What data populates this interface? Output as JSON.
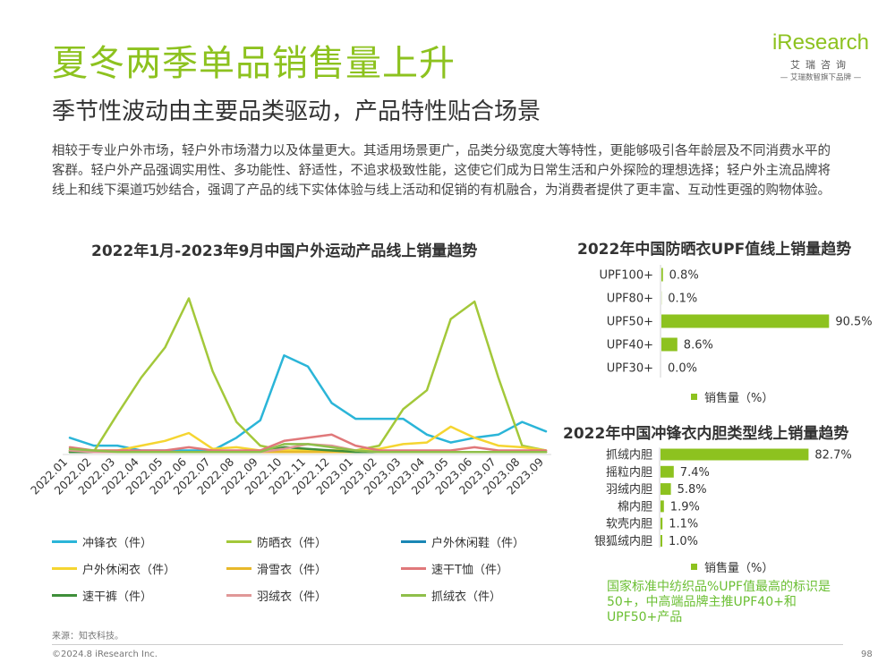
{
  "header": {
    "title": "夏冬两季单品销售量上升",
    "subtitle": "季节性波动由主要品类驱动，产品特性贴合场景",
    "intro": "相较于专业户外市场，轻户外市场潜力以及体量更大。其适用场景更广，品类分级宽度大等特性，更能够吸引各年龄层及不同消费水平的客群。轻户外产品强调实用性、多功能性、舒适性，不追求极致性能，这使它们成为日常生活和户外探险的理想选择；轻户外主流品牌将线上和线下渠道巧妙结合，强调了产品的线下实体体验与线上活动和促销的有机融合，为消费者提供了更丰富、互动性更强的购物体验。"
  },
  "logo": {
    "brand": "iResearch",
    "cn": "艾瑞咨询",
    "slogan": "— 艾瑞数智旗下品牌 —"
  },
  "colors": {
    "accent": "#8dc21f",
    "note": "#6bbf33",
    "bar": "#8dc21f"
  },
  "chart_data": [
    {
      "type": "line",
      "title": "2022年1月-2023年9月中国户外运动产品线上销量趋势",
      "xlabel": "",
      "ylabel": "",
      "ylim": [
        0,
        100
      ],
      "grid": false,
      "legend_position": "bottom",
      "categories": [
        "2022.01",
        "2022.02",
        "2022.03",
        "2022.04",
        "2022.05",
        "2022.06",
        "2022.07",
        "2022.08",
        "2022.09",
        "2022.10",
        "2022.11",
        "2022.12",
        "2023.01",
        "2023.02",
        "2023.03",
        "2023.04",
        "2023.05",
        "2023.06",
        "2023.07",
        "2023.08",
        "2023.09"
      ],
      "series": [
        {
          "name": "冲锋衣（件）",
          "color": "#2bb5d8",
          "values": [
            10,
            5,
            5,
            2,
            2,
            2,
            2,
            10,
            21,
            62,
            55,
            32,
            22,
            22,
            22,
            12,
            7,
            10,
            12,
            20,
            14
          ]
        },
        {
          "name": "防晒衣（件）",
          "color": "#a3c83a",
          "values": [
            2,
            1,
            25,
            48,
            67,
            98,
            52,
            20,
            5,
            2,
            2,
            2,
            2,
            5,
            28,
            40,
            85,
            96,
            48,
            5,
            2
          ]
        },
        {
          "name": "户外休闲鞋（件）",
          "color": "#1a87b5",
          "values": [
            1,
            1,
            1,
            1,
            1,
            1,
            1,
            1,
            1,
            1,
            1,
            1,
            1,
            1,
            1,
            1,
            1,
            1,
            1,
            1,
            1
          ]
        },
        {
          "name": "户外休闲衣（件）",
          "color": "#f5d531",
          "values": [
            2,
            2,
            2,
            5,
            8,
            13,
            3,
            4,
            2,
            2,
            2,
            2,
            2,
            3,
            6,
            7,
            17,
            10,
            5,
            4,
            2
          ]
        },
        {
          "name": "滑雪衣（件）",
          "color": "#e8b82a",
          "values": [
            1,
            1,
            1,
            1,
            1,
            1,
            1,
            1,
            1,
            1,
            1,
            1,
            1,
            1,
            1,
            1,
            1,
            1,
            1,
            1,
            1
          ]
        },
        {
          "name": "速干T恤（件）",
          "color": "#e0787a",
          "values": [
            4,
            2,
            2,
            2,
            2,
            4,
            2,
            2,
            2,
            8,
            10,
            12,
            5,
            2,
            2,
            2,
            2,
            4,
            2,
            2,
            2
          ]
        },
        {
          "name": "速干裤（件）",
          "color": "#3f8f3a",
          "values": [
            1,
            1,
            1,
            1,
            1,
            1,
            1,
            1,
            1,
            4,
            3,
            2,
            1,
            1,
            1,
            1,
            1,
            1,
            1,
            1,
            1
          ]
        },
        {
          "name": "羽绒衣（件）",
          "color": "#e09898",
          "values": [
            2,
            1,
            1,
            1,
            1,
            1,
            1,
            1,
            1,
            3,
            6,
            5,
            2,
            1,
            1,
            1,
            1,
            1,
            1,
            1,
            1
          ]
        },
        {
          "name": "抓绒衣（件）",
          "color": "#8fbf4a",
          "values": [
            3,
            2,
            1,
            1,
            1,
            1,
            1,
            1,
            1,
            6,
            6,
            4,
            2,
            1,
            1,
            1,
            1,
            1,
            1,
            1,
            1
          ]
        }
      ]
    },
    {
      "type": "bar",
      "orientation": "horizontal",
      "title": "2022年中国防晒衣UPF值线上销量趋势",
      "categories": [
        "UPF100+",
        "UPF80+",
        "UPF50+",
        "UPF40+",
        "UPF30+"
      ],
      "values": [
        0.8,
        0.1,
        90.5,
        8.6,
        0.0
      ],
      "labels": [
        "0.8%",
        "0.1%",
        "90.5%",
        "8.6%",
        "0.0%"
      ],
      "legend": "销售量（%）",
      "xlim": [
        0,
        100
      ]
    },
    {
      "type": "bar",
      "orientation": "horizontal",
      "title": "2022年中国冲锋衣内胆类型线上销量趋势",
      "categories": [
        "抓绒内胆",
        "摇粒内胆",
        "羽绒内胆",
        "棉内胆",
        "软壳内胆",
        "银狐绒内胆"
      ],
      "values": [
        82.7,
        7.4,
        5.8,
        1.9,
        1.1,
        1.0
      ],
      "labels": [
        "82.7%",
        "7.4%",
        "5.8%",
        "1.9%",
        "1.1%",
        "1.0%"
      ],
      "legend": "销售量（%）",
      "xlim": [
        0,
        100
      ]
    }
  ],
  "note": "国家标准中纺织品%UPF值最高的标识是50+，中高端品牌主推UPF40+和UPF50+产品",
  "footer": {
    "source": "来源：知衣科技。",
    "copyright": "©2024.8 iResearch Inc.",
    "page": "98"
  }
}
